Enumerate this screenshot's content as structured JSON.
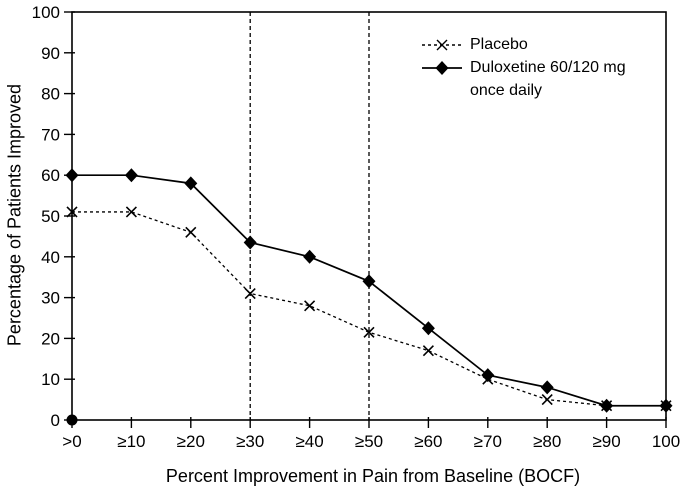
{
  "figure": {
    "background_color": "#ffffff",
    "ink_color": "#000000"
  },
  "chart_data": {
    "type": "line",
    "title": "",
    "xlabel": "Percent Improvement in Pain from Baseline (BOCF)",
    "ylabel": "Percentage of Patients Improved",
    "categories": [
      ">0",
      "≥10",
      "≥20",
      "≥30",
      "≥40",
      "≥50",
      "≥60",
      "≥70",
      "≥80",
      "≥90",
      "100"
    ],
    "yticks": [
      0,
      10,
      20,
      30,
      40,
      50,
      60,
      70,
      80,
      90,
      100
    ],
    "ylim": [
      0,
      100
    ],
    "grid": false,
    "frame": "full-box",
    "reference_lines_x": [
      "≥30",
      "≥50"
    ],
    "origin_marker": {
      "x": ">0",
      "y": 0,
      "shape": "filled-circle"
    },
    "series": [
      {
        "name": "Placebo",
        "marker": "x",
        "line_style": "dashed",
        "color": "#000000",
        "values": [
          51,
          51,
          46,
          31,
          28,
          21.5,
          17,
          10,
          5,
          3.5,
          3.5
        ]
      },
      {
        "name": "Duloxetine 60/120 mg once daily",
        "marker": "diamond",
        "line_style": "solid",
        "color": "#000000",
        "values": [
          60,
          60,
          58,
          43.5,
          40,
          34,
          22.5,
          11,
          8,
          3.5,
          3.5
        ]
      }
    ],
    "legend": {
      "position": "top-right-inside",
      "entries": [
        {
          "label_lines": [
            "Placebo"
          ],
          "marker": "x",
          "line_style": "dashed"
        },
        {
          "label_lines": [
            "Duloxetine 60/120 mg",
            "once daily"
          ],
          "marker": "diamond",
          "line_style": "solid"
        }
      ]
    }
  }
}
